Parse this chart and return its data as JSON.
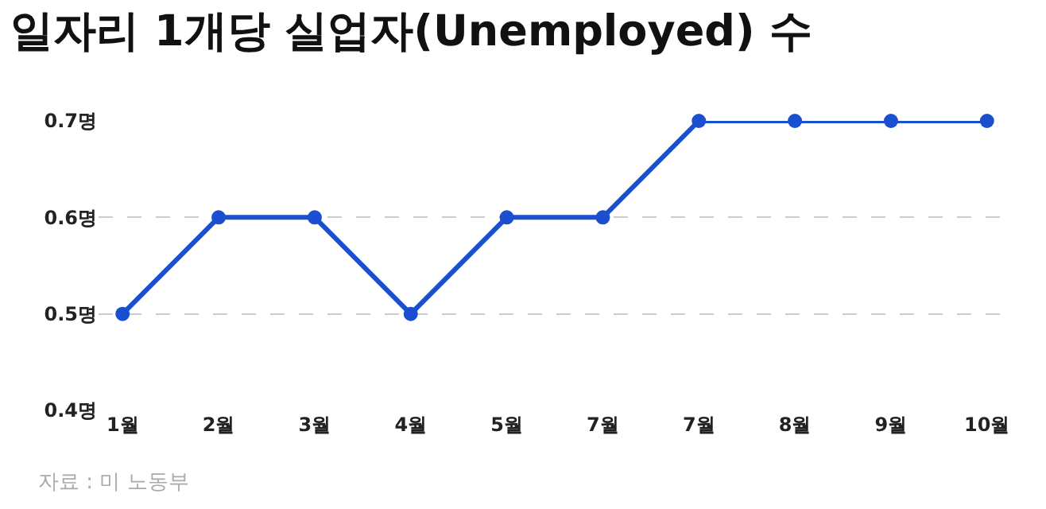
{
  "chart_data": {
    "type": "line",
    "title": "일자리 1개당 실업자(Unemployed) 수",
    "categories": [
      "1월",
      "2월",
      "3월",
      "4월",
      "5월",
      "7월",
      "7월",
      "8월",
      "9월",
      "10월"
    ],
    "series": [
      {
        "color": "#1a4fd0",
        "values": [
          0.5,
          0.6,
          0.6,
          0.5,
          0.6,
          0.6,
          0.7,
          0.7,
          0.7,
          0.7
        ]
      }
    ],
    "ylim": [
      0.4,
      0.7
    ],
    "yticks": [
      {
        "value": 0.4,
        "label": "0.4명"
      },
      {
        "value": 0.5,
        "label": "0.5명"
      },
      {
        "value": 0.6,
        "label": "0.6명"
      },
      {
        "value": 0.7,
        "label": "0.7명"
      }
    ],
    "grid": "y",
    "marker": "circle",
    "line_style": "solid",
    "annotations": [
      "자료 : 미 노동부"
    ]
  }
}
